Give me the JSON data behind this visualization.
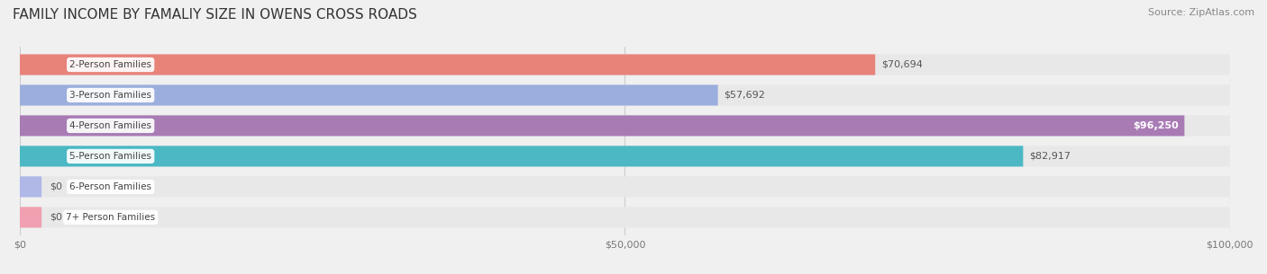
{
  "title": "FAMILY INCOME BY FAMALIY SIZE IN OWENS CROSS ROADS",
  "source": "Source: ZipAtlas.com",
  "categories": [
    "2-Person Families",
    "3-Person Families",
    "4-Person Families",
    "5-Person Families",
    "6-Person Families",
    "7+ Person Families"
  ],
  "values": [
    70694,
    57692,
    96250,
    82917,
    0,
    0
  ],
  "bar_colors": [
    "#E8837A",
    "#9BAEDD",
    "#A97BB5",
    "#4BB8C4",
    "#B0B8E8",
    "#F0A0B0"
  ],
  "label_colors": [
    "#ffffff",
    "#555555",
    "#ffffff",
    "#ffffff",
    "#555555",
    "#555555"
  ],
  "xlim": [
    0,
    100000
  ],
  "xticks": [
    0,
    50000,
    100000
  ],
  "xtick_labels": [
    "$0",
    "$50,000",
    "$100,000"
  ],
  "background_color": "#f0f0f0",
  "bar_background_color": "#e8e8e8",
  "title_fontsize": 11,
  "source_fontsize": 8,
  "bar_height": 0.68,
  "figsize": [
    14.06,
    3.05
  ],
  "dpi": 100
}
